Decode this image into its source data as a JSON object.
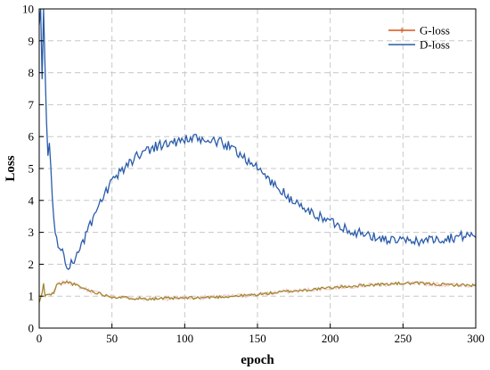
{
  "chart_data": {
    "type": "line",
    "title": "",
    "xlabel": "epoch",
    "ylabel": "Loss",
    "xlim": [
      0,
      300
    ],
    "ylim": [
      0,
      10
    ],
    "x_ticks": [
      "0",
      "50",
      "100",
      "150",
      "200",
      "250",
      "300"
    ],
    "y_ticks": [
      "0",
      "1",
      "2",
      "3",
      "4",
      "5",
      "6",
      "7",
      "8",
      "9",
      "10"
    ],
    "grid": true,
    "legend_position": "top-right",
    "series": [
      {
        "name": "G-loss",
        "color": "#d95319",
        "shadow_color": "#a0892a",
        "points": [
          [
            0,
            0.8
          ],
          [
            1,
            0.95
          ],
          [
            2,
            1.1
          ],
          [
            3,
            1.4
          ],
          [
            4,
            1.0
          ],
          [
            5,
            1.05
          ],
          [
            6,
            1.05
          ],
          [
            8,
            1.05
          ],
          [
            10,
            1.1
          ],
          [
            12,
            1.35
          ],
          [
            15,
            1.4
          ],
          [
            20,
            1.45
          ],
          [
            25,
            1.35
          ],
          [
            30,
            1.25
          ],
          [
            40,
            1.1
          ],
          [
            50,
            0.98
          ],
          [
            60,
            0.95
          ],
          [
            70,
            0.93
          ],
          [
            80,
            0.92
          ],
          [
            90,
            0.93
          ],
          [
            100,
            0.94
          ],
          [
            110,
            0.95
          ],
          [
            120,
            0.97
          ],
          [
            130,
            0.99
          ],
          [
            140,
            1.02
          ],
          [
            150,
            1.05
          ],
          [
            160,
            1.1
          ],
          [
            170,
            1.15
          ],
          [
            180,
            1.18
          ],
          [
            190,
            1.22
          ],
          [
            200,
            1.26
          ],
          [
            210,
            1.3
          ],
          [
            220,
            1.33
          ],
          [
            230,
            1.36
          ],
          [
            240,
            1.38
          ],
          [
            250,
            1.4
          ],
          [
            260,
            1.4
          ],
          [
            270,
            1.38
          ],
          [
            280,
            1.36
          ],
          [
            290,
            1.35
          ],
          [
            300,
            1.34
          ]
        ]
      },
      {
        "name": "D-loss",
        "color": "#2a5caa",
        "points": [
          [
            0,
            9.5
          ],
          [
            1,
            10.2
          ],
          [
            2,
            7.8
          ],
          [
            3,
            10.5
          ],
          [
            4,
            8.2
          ],
          [
            5,
            6.5
          ],
          [
            6,
            5.4
          ],
          [
            7,
            5.7
          ],
          [
            8,
            5.0
          ],
          [
            9,
            4.2
          ],
          [
            10,
            3.6
          ],
          [
            11,
            3.0
          ],
          [
            12,
            2.7
          ],
          [
            13,
            2.45
          ],
          [
            14,
            2.55
          ],
          [
            15,
            2.5
          ],
          [
            16,
            2.4
          ],
          [
            17,
            2.3
          ],
          [
            18,
            2.1
          ],
          [
            19,
            2.0
          ],
          [
            20,
            1.97
          ],
          [
            22,
            2.0
          ],
          [
            25,
            2.2
          ],
          [
            28,
            2.5
          ],
          [
            30,
            2.7
          ],
          [
            35,
            3.2
          ],
          [
            40,
            3.7
          ],
          [
            45,
            4.2
          ],
          [
            50,
            4.55
          ],
          [
            55,
            4.85
          ],
          [
            60,
            5.1
          ],
          [
            65,
            5.3
          ],
          [
            70,
            5.5
          ],
          [
            75,
            5.6
          ],
          [
            80,
            5.7
          ],
          [
            85,
            5.75
          ],
          [
            90,
            5.8
          ],
          [
            95,
            5.85
          ],
          [
            100,
            5.9
          ],
          [
            105,
            5.92
          ],
          [
            110,
            5.9
          ],
          [
            115,
            5.88
          ],
          [
            120,
            5.85
          ],
          [
            125,
            5.8
          ],
          [
            130,
            5.7
          ],
          [
            135,
            5.55
          ],
          [
            140,
            5.4
          ],
          [
            145,
            5.2
          ],
          [
            150,
            5.0
          ],
          [
            155,
            4.8
          ],
          [
            160,
            4.55
          ],
          [
            165,
            4.35
          ],
          [
            170,
            4.15
          ],
          [
            175,
            3.95
          ],
          [
            180,
            3.8
          ],
          [
            185,
            3.65
          ],
          [
            190,
            3.55
          ],
          [
            195,
            3.45
          ],
          [
            200,
            3.35
          ],
          [
            205,
            3.25
          ],
          [
            210,
            3.15
          ],
          [
            215,
            3.05
          ],
          [
            220,
            2.98
          ],
          [
            225,
            2.9
          ],
          [
            230,
            2.85
          ],
          [
            235,
            2.8
          ],
          [
            240,
            2.78
          ],
          [
            245,
            2.75
          ],
          [
            250,
            2.72
          ],
          [
            255,
            2.72
          ],
          [
            260,
            2.73
          ],
          [
            265,
            2.75
          ],
          [
            270,
            2.78
          ],
          [
            275,
            2.8
          ],
          [
            280,
            2.82
          ],
          [
            285,
            2.85
          ],
          [
            290,
            2.88
          ],
          [
            295,
            2.9
          ],
          [
            300,
            2.92
          ]
        ]
      }
    ]
  }
}
